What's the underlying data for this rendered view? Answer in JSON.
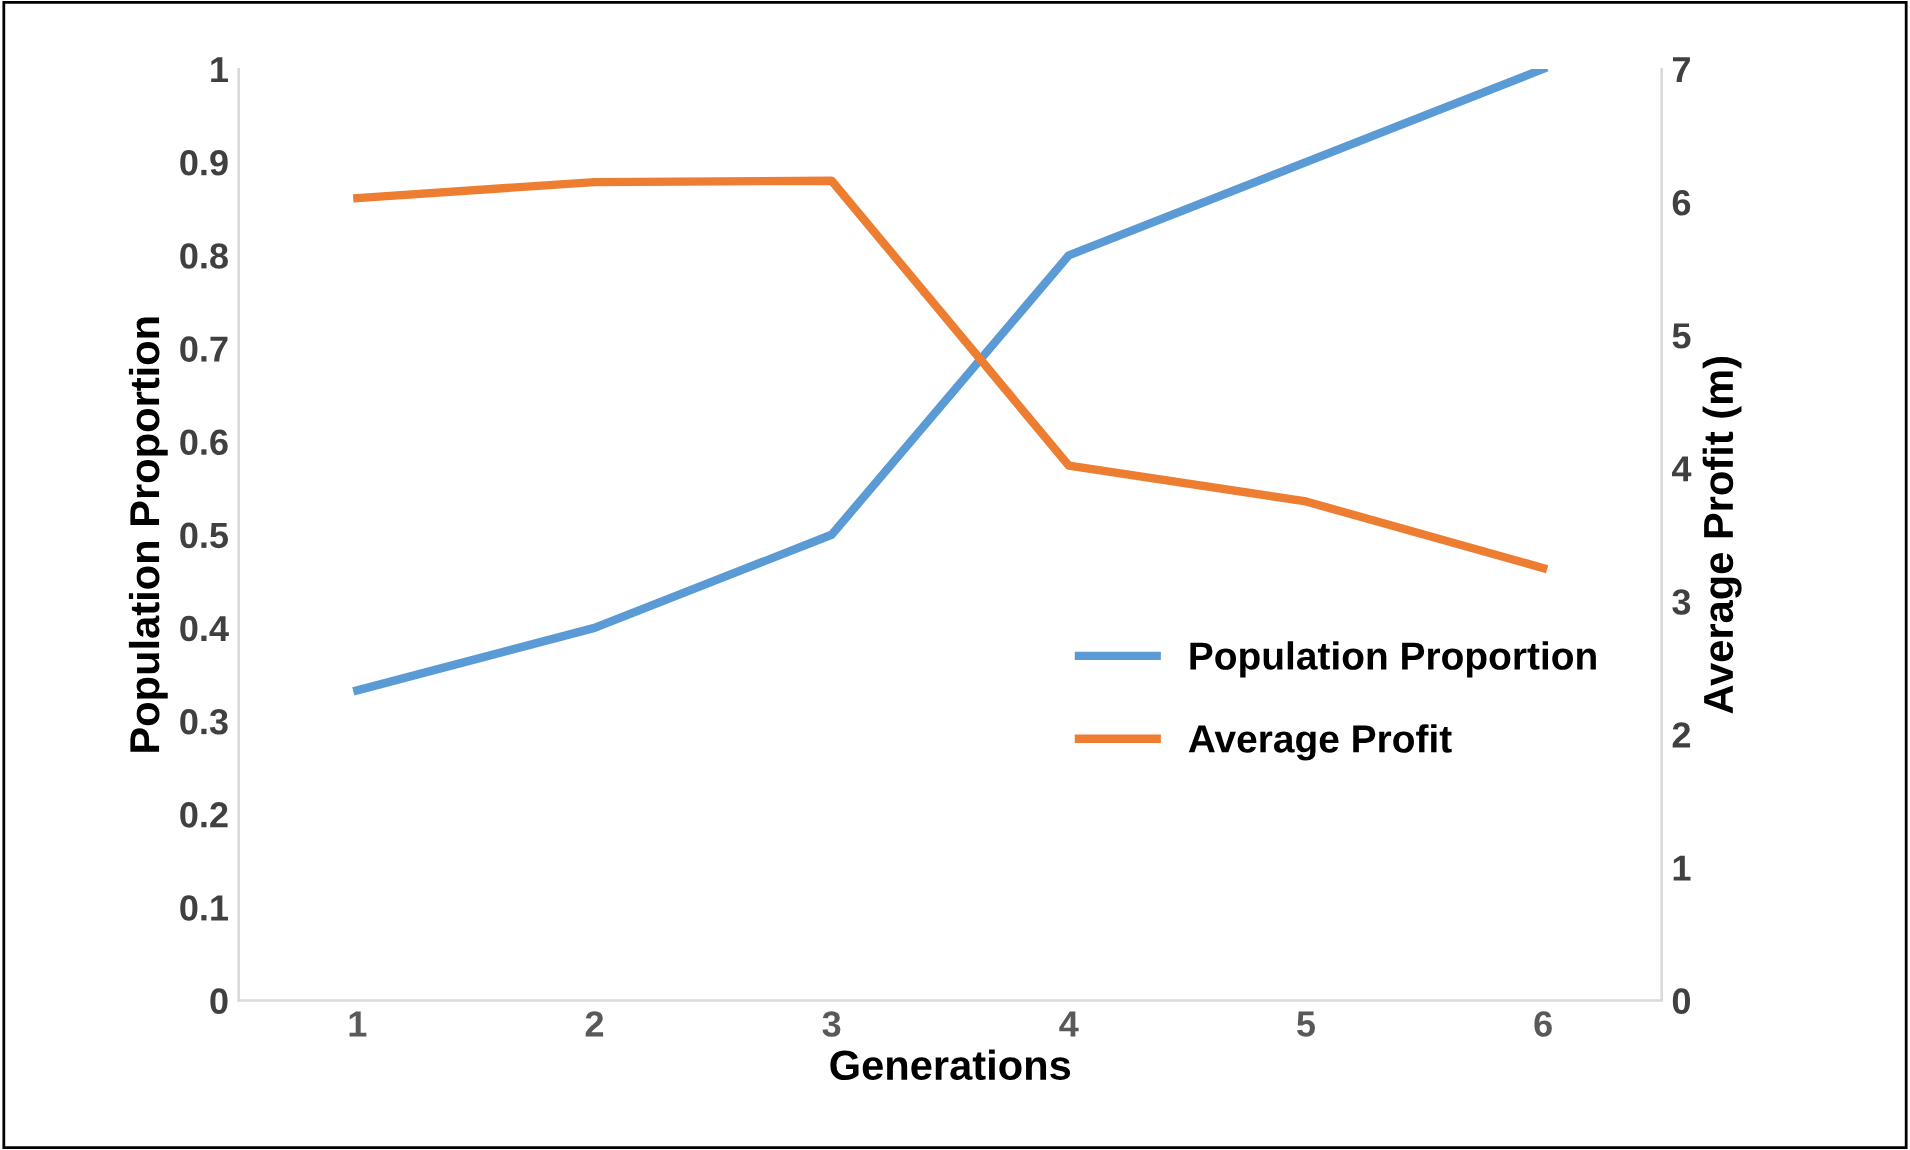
{
  "chart_data": {
    "type": "line",
    "xlabel": "Generations",
    "ylabel": "Population Proportion",
    "y2label": "Average Profit (m)",
    "categories": [
      "1",
      "2",
      "3",
      "4",
      "5",
      "6"
    ],
    "series": [
      {
        "name": "Population Proportion",
        "color": "#5b9bd5",
        "values": [
          0.333,
          0.4,
          0.5,
          0.8,
          0.9,
          1.0
        ]
      },
      {
        "name": "Average Profit",
        "color": "#ed7d31",
        "axis": "y2",
        "values": [
          6.03,
          6.15,
          6.16,
          4.02,
          3.75,
          3.25
        ]
      }
    ],
    "ylim": [
      0,
      1
    ],
    "yticks": [
      0,
      0.1,
      0.2,
      0.3,
      0.4,
      0.5,
      0.6,
      0.7,
      0.8,
      0.9,
      1
    ],
    "y2lim": [
      0,
      7
    ],
    "y2ticks": [
      0,
      1,
      2,
      3,
      4,
      5,
      6,
      7
    ],
    "grid": false,
    "legend": "bottom right",
    "marker": "none",
    "line_style": "solid"
  }
}
